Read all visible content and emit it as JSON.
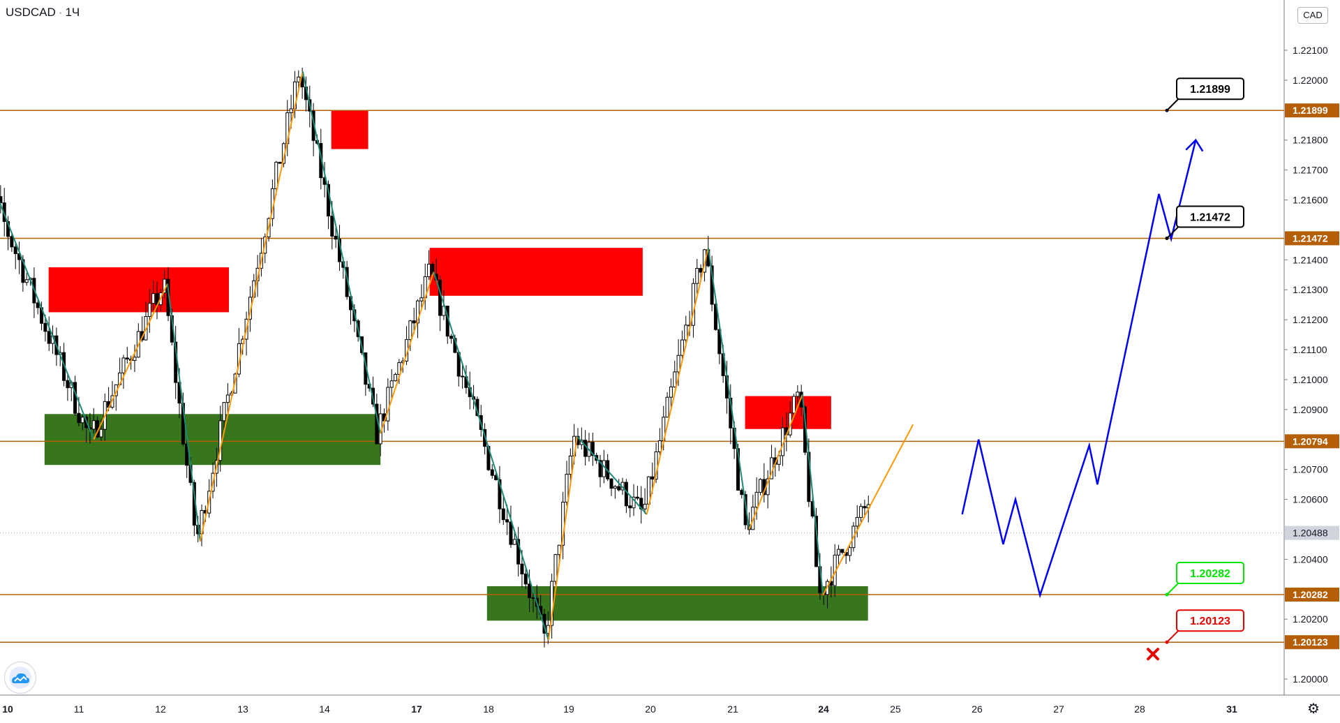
{
  "header": {
    "symbol": "USDCAD",
    "interval": "1Ч",
    "separator": "·"
  },
  "price_axis": {
    "currency": "CAD"
  },
  "icons": {
    "logo": "tradingview-cloud-icon",
    "settings": "gear-icon",
    "invalidation": "red-x-icon"
  },
  "colors": {
    "level_line": "#b45f06",
    "supply_zone": "#ff0000",
    "demand_zone": "#38761d",
    "wave_up": "#ff9900",
    "wave_down": "#1b8a7a",
    "projection": "#0000ff",
    "candle": "#000000",
    "target_label": "#000000",
    "entry_label": "#00e600",
    "stop_label": "#e60000"
  },
  "chart_data": {
    "type": "candlestick",
    "symbol": "USDCAD",
    "interval": "1Ч",
    "x_tick_labels": [
      "10",
      "11",
      "12",
      "13",
      "14",
      "17",
      "18",
      "19",
      "20",
      "21",
      "24",
      "25",
      "26",
      "27",
      "28",
      "31"
    ],
    "x_tick_bold": [
      "10",
      "17",
      "24",
      "31"
    ],
    "y_ticks": [
      "1.22100",
      "1.22000",
      "1.21800",
      "1.21700",
      "1.21600",
      "1.21400",
      "1.21300",
      "1.21200",
      "1.21100",
      "1.21000",
      "1.20900",
      "1.20700",
      "1.20600",
      "1.20400",
      "1.20200",
      "1.20000"
    ],
    "ylim": [
      1.1995,
      1.2232
    ],
    "current_price": {
      "value": 1.20488,
      "label": "1.20488"
    },
    "levels": [
      {
        "value": 1.21899,
        "label": "1.21899"
      },
      {
        "value": 1.21472,
        "label": "1.21472"
      },
      {
        "value": 1.20794,
        "label": "1.20794"
      },
      {
        "value": 1.20282,
        "label": "1.20282"
      },
      {
        "value": 1.20123,
        "label": "1.20123"
      }
    ],
    "callouts": [
      {
        "label": "1.21899",
        "value": 1.21899,
        "kind": "target"
      },
      {
        "label": "1.21472",
        "value": 1.21472,
        "kind": "target"
      },
      {
        "label": "1.20282",
        "value": 1.20282,
        "kind": "entry"
      },
      {
        "label": "1.20123",
        "value": 1.20123,
        "kind": "stop"
      }
    ],
    "zones": [
      {
        "kind": "supply",
        "day_from": 10.5,
        "day_to": 12.7,
        "top": 1.21375,
        "bottom": 1.21225
      },
      {
        "kind": "supply",
        "day_from": 13.95,
        "day_to": 14.4,
        "top": 1.219,
        "bottom": 1.2177
      },
      {
        "kind": "supply",
        "day_from": 15.15,
        "day_to": 17.75,
        "top": 1.2144,
        "bottom": 1.2128
      },
      {
        "kind": "supply",
        "day_from": 19.0,
        "day_to": 20.05,
        "top": 1.20945,
        "bottom": 1.20835
      },
      {
        "kind": "demand",
        "day_from": 10.45,
        "day_to": 14.55,
        "top": 1.20885,
        "bottom": 1.20715
      },
      {
        "kind": "demand",
        "day_from": 15.85,
        "day_to": 20.5,
        "top": 1.2031,
        "bottom": 1.20195
      }
    ],
    "waves": [
      {
        "kind": "down",
        "points": [
          [
            9.6,
            1.218
          ],
          [
            11.05,
            1.208
          ]
        ]
      },
      {
        "kind": "up",
        "points": [
          [
            11.05,
            1.208
          ],
          [
            11.95,
            1.2132
          ]
        ]
      },
      {
        "kind": "down",
        "points": [
          [
            11.95,
            1.2132
          ],
          [
            12.35,
            1.2046
          ]
        ]
      },
      {
        "kind": "up",
        "points": [
          [
            12.35,
            1.2046
          ],
          [
            13.6,
            1.2203
          ]
        ]
      },
      {
        "kind": "down",
        "points": [
          [
            13.6,
            1.2203
          ],
          [
            14.55,
            1.2082
          ]
        ]
      },
      {
        "kind": "up",
        "points": [
          [
            14.55,
            1.2082
          ],
          [
            15.2,
            1.2136
          ]
        ]
      },
      {
        "kind": "down",
        "points": [
          [
            15.2,
            1.2136
          ],
          [
            16.6,
            1.2013
          ]
        ]
      },
      {
        "kind": "up",
        "points": [
          [
            16.6,
            1.2013
          ],
          [
            16.95,
            1.2081
          ]
        ]
      },
      {
        "kind": "down",
        "points": [
          [
            16.95,
            1.2081
          ],
          [
            17.8,
            1.2055
          ]
        ]
      },
      {
        "kind": "up",
        "points": [
          [
            17.8,
            1.2055
          ],
          [
            18.55,
            1.2144
          ]
        ]
      },
      {
        "kind": "down",
        "points": [
          [
            18.55,
            1.2144
          ],
          [
            19.05,
            1.205
          ]
        ]
      },
      {
        "kind": "up",
        "points": [
          [
            19.05,
            1.205
          ],
          [
            19.7,
            1.2095
          ]
        ]
      },
      {
        "kind": "down",
        "points": [
          [
            19.7,
            1.2095
          ],
          [
            19.95,
            1.2028
          ]
        ]
      },
      {
        "kind": "up",
        "points": [
          [
            19.95,
            1.2028
          ],
          [
            21.05,
            1.2085
          ]
        ]
      }
    ],
    "projection": [
      [
        21.65,
        1.2055
      ],
      [
        21.85,
        1.208
      ],
      [
        22.15,
        1.2045
      ],
      [
        22.3,
        1.206
      ],
      [
        22.6,
        1.2028
      ],
      [
        23.2,
        1.2078
      ],
      [
        23.3,
        1.2065
      ],
      [
        24.05,
        1.2162
      ],
      [
        24.2,
        1.2147
      ],
      [
        24.5,
        1.218
      ]
    ],
    "candles": {
      "time_unit": "hour",
      "start_day": 9.5,
      "bars_per_day": 24,
      "ohlc": []
    }
  }
}
